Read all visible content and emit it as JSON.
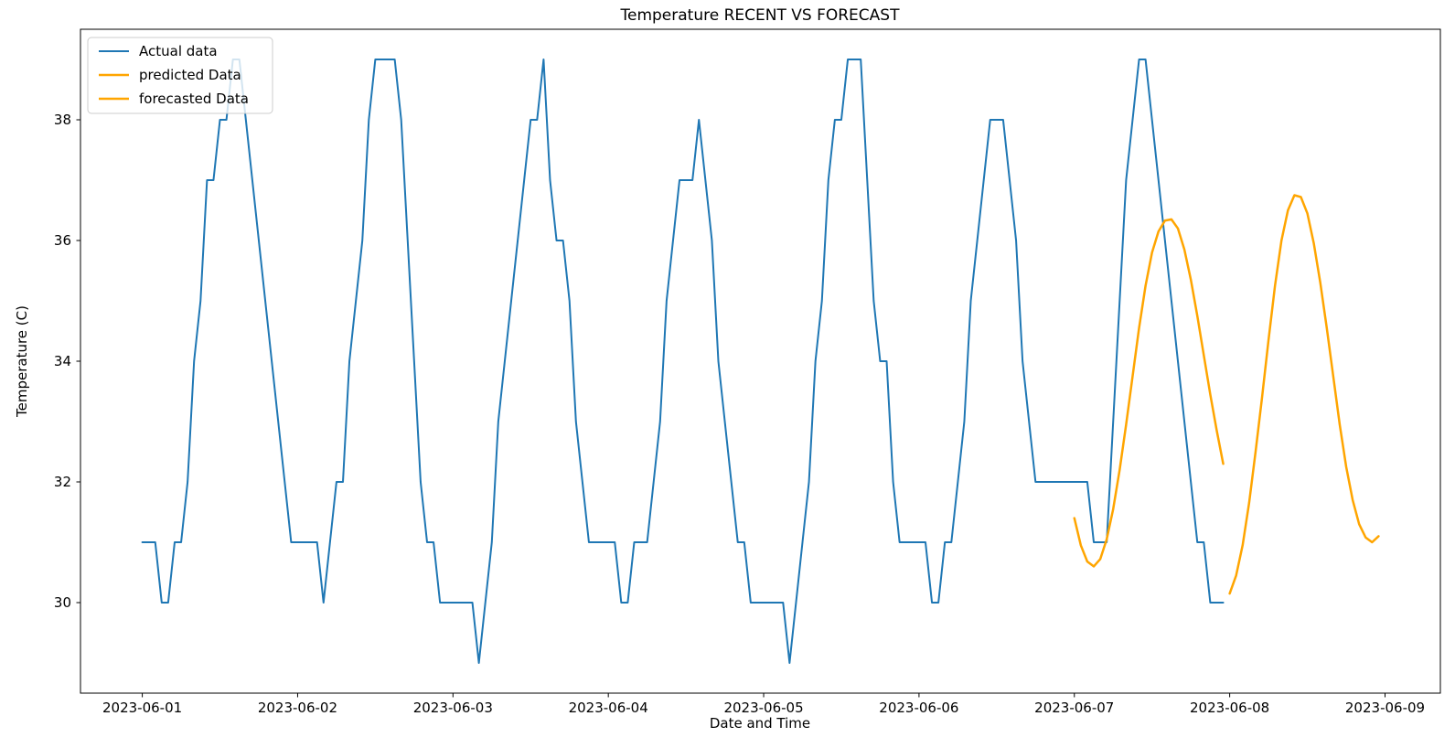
{
  "figure": {
    "background": "#ffffff",
    "frame_color": "#000000"
  },
  "chart_data": {
    "type": "line",
    "title": "Temperature RECENT VS FORECAST",
    "xlabel": "Date and Time",
    "ylabel": "Temperature (C)",
    "grid": false,
    "legend_position": "upper-left",
    "x_axis": {
      "unit": "hours since 2023-06-01 00:00",
      "tick_hours": [
        0,
        24,
        48,
        72,
        96,
        120,
        144,
        168,
        192
      ],
      "tick_labels": [
        "2023-06-01",
        "2023-06-02",
        "2023-06-03",
        "2023-06-04",
        "2023-06-05",
        "2023-06-06",
        "2023-06-07",
        "2023-06-08",
        "2023-06-09"
      ],
      "xlim_hours": [
        -9.55,
        200.55
      ]
    },
    "y_axis": {
      "ticks": [
        30,
        32,
        34,
        36,
        38
      ],
      "ylim": [
        28.5,
        39.5
      ]
    },
    "series": [
      {
        "name": "Actual data",
        "color": "#1f77b4",
        "line_width": 2,
        "start_hour": 0,
        "step_hours": 1,
        "values": [
          31,
          31,
          31,
          30,
          30,
          31,
          31,
          32,
          34,
          35,
          37,
          37,
          38,
          38,
          39,
          39,
          38,
          37,
          36,
          35,
          34,
          33,
          32,
          31,
          31,
          31,
          31,
          31,
          30,
          31,
          32,
          32,
          34,
          35,
          36,
          38,
          39,
          39,
          39,
          39,
          38,
          36,
          34,
          32,
          31,
          31,
          30,
          30,
          30,
          30,
          30,
          30,
          29,
          30,
          31,
          33,
          34,
          35,
          36,
          37,
          38,
          38,
          39,
          37,
          36,
          36,
          35,
          33,
          32,
          31,
          31,
          31,
          31,
          31,
          30,
          30,
          31,
          31,
          31,
          32,
          33,
          35,
          36,
          37,
          37,
          37,
          38,
          37,
          36,
          34,
          33,
          32,
          31,
          31,
          30,
          30,
          30,
          30,
          30,
          30,
          29,
          30,
          31,
          32,
          34,
          35,
          37,
          38,
          38,
          39,
          39,
          39,
          37,
          35,
          34,
          34,
          32,
          31,
          31,
          31,
          31,
          31,
          30,
          30,
          31,
          31,
          32,
          33,
          35,
          36,
          37,
          38,
          38,
          38,
          37,
          36,
          34,
          33,
          32,
          32,
          32,
          32,
          32,
          32,
          32,
          32,
          32,
          31,
          31,
          31,
          33,
          35,
          37,
          38,
          39,
          39,
          38,
          37,
          36,
          35,
          34,
          33,
          32,
          31,
          31,
          30,
          30,
          30
        ]
      },
      {
        "name": "predicted Data",
        "color": "#ffa500",
        "line_width": 2.5,
        "start_hour": 144,
        "step_hours": 1,
        "values": [
          31.4,
          30.95,
          30.68,
          30.6,
          30.72,
          31.05,
          31.55,
          32.2,
          32.95,
          33.75,
          34.55,
          35.25,
          35.8,
          36.15,
          36.33,
          36.35,
          36.2,
          35.85,
          35.35,
          34.75,
          34.1,
          33.45,
          32.85,
          32.3
        ]
      },
      {
        "name": "forecasted Data",
        "color": "#ffa500",
        "line_width": 2.5,
        "start_hour": 168,
        "step_hours": 1,
        "values": [
          30.15,
          30.45,
          30.95,
          31.65,
          32.5,
          33.4,
          34.35,
          35.25,
          36.0,
          36.5,
          36.75,
          36.72,
          36.45,
          35.95,
          35.3,
          34.55,
          33.75,
          32.95,
          32.25,
          31.7,
          31.3,
          31.08,
          31.0,
          31.1
        ]
      }
    ]
  }
}
